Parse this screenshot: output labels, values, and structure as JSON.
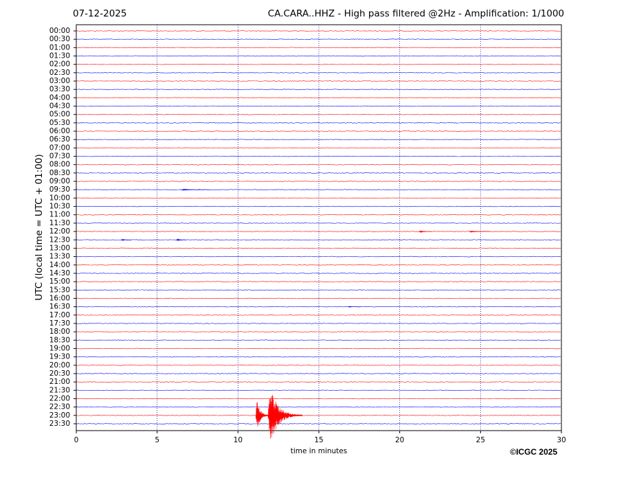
{
  "chart_data": {
    "type": "helicorder",
    "date": "07-12-2025",
    "title": "CA.CARA..HHZ - High pass filtered @2Hz - Amplification: 1/1000",
    "y_label": "UTC (local time = UTC + 01:00)",
    "x_label": "time in minutes",
    "credit": "©ICGC 2025",
    "categories": [
      "00:00",
      "00:30",
      "01:00",
      "01:30",
      "02:00",
      "02:30",
      "03:00",
      "03:30",
      "04:00",
      "04:30",
      "05:00",
      "05:30",
      "06:00",
      "06:30",
      "07:00",
      "07:30",
      "08:00",
      "08:30",
      "09:00",
      "09:30",
      "10:00",
      "10:30",
      "11:00",
      "11:30",
      "12:00",
      "12:30",
      "13:00",
      "13:30",
      "14:00",
      "14:30",
      "15:00",
      "15:30",
      "16:00",
      "16:30",
      "17:00",
      "17:30",
      "18:00",
      "18:30",
      "19:00",
      "19:30",
      "20:00",
      "20:30",
      "21:00",
      "21:30",
      "22:00",
      "22:30",
      "23:00",
      "23:30"
    ],
    "colors": [
      "#ff0000",
      "#0000ff"
    ],
    "xlim": [
      0,
      30
    ],
    "xticks": [
      0,
      5,
      10,
      15,
      20,
      25,
      30
    ],
    "grid": true,
    "events": [
      {
        "row": "09:30",
        "start": 6.5,
        "end": 8.2,
        "amplitude": 0.1
      },
      {
        "row": "12:00",
        "start": 21.2,
        "end": 22.0,
        "amplitude": 0.15
      },
      {
        "row": "12:00",
        "start": 24.3,
        "end": 25.6,
        "amplitude": 0.1
      },
      {
        "row": "12:30",
        "start": 2.8,
        "end": 3.4,
        "amplitude": 0.15
      },
      {
        "row": "12:30",
        "start": 6.2,
        "end": 6.8,
        "amplitude": 0.2
      },
      {
        "row": "16:30",
        "start": 16.8,
        "end": 17.6,
        "amplitude": 0.08
      },
      {
        "row": "23:00",
        "start": 11.1,
        "end": 12.0,
        "amplitude": 2.7
      },
      {
        "row": "23:00",
        "start": 11.85,
        "end": 14.0,
        "amplitude": 4.8
      }
    ]
  }
}
